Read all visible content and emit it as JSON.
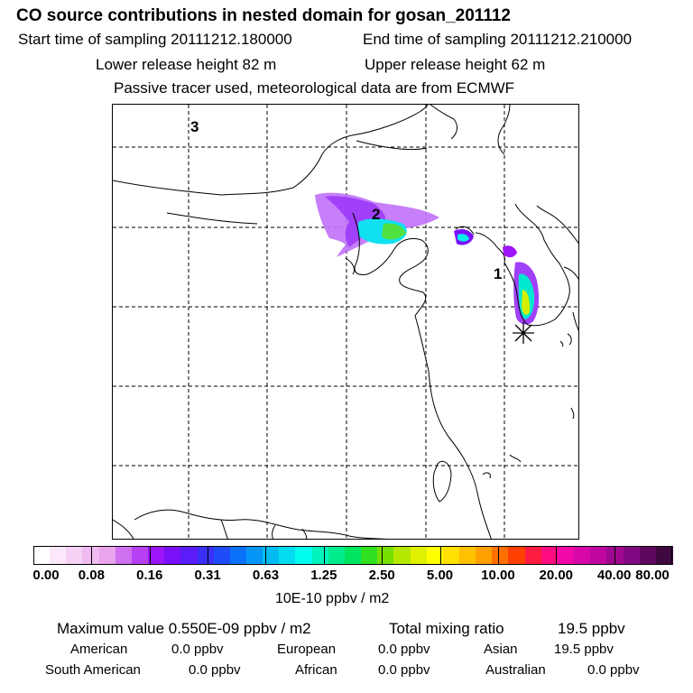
{
  "header": {
    "title": "CO  source contributions in nested domain for gosan_201112",
    "start_time": "Start time of sampling 20111212.180000",
    "end_time": "End time of sampling 20111212.210000",
    "lower_release": "Lower release height   82 m",
    "upper_release": "Upper release height   62 m",
    "tracer_note": "Passive tracer used, meteorological data are from ECMWF"
  },
  "map": {
    "labels": [
      "1",
      "2",
      "3"
    ],
    "receptor_marker": "receptor-star"
  },
  "colorbar": {
    "colors": [
      "#ffffff",
      "#fbe9fb",
      "#f5d2f5",
      "#efbbf0",
      "#e9a4ec",
      "#cf70f0",
      "#b640f4",
      "#9c14f8",
      "#7a10f8",
      "#5a1cf8",
      "#3a30f8",
      "#1e4cf8",
      "#0a72f8",
      "#0696f8",
      "#04bcf4",
      "#02dcf0",
      "#00fcec",
      "#00f4bc",
      "#00ec8c",
      "#00e460",
      "#30e020",
      "#78e000",
      "#b4e800",
      "#e0f000",
      "#ffff00",
      "#ffe000",
      "#ffc000",
      "#ffa000",
      "#ff7000",
      "#ff4000",
      "#ff1c40",
      "#ff0c80",
      "#f008a8",
      "#d808a8",
      "#c008a0",
      "#a00890",
      "#800880",
      "#600860",
      "#400840"
    ],
    "tick_labels": [
      "0.00",
      "0.08",
      "0.16",
      "0.31",
      "0.63",
      "1.25",
      "2.50",
      "5.00",
      "10.00",
      "20.00",
      "40.00",
      "80.00"
    ],
    "units": "10E-10 ppbv / m2"
  },
  "stats": {
    "max_value": "Maximum value  0.550E-09 ppbv / m2",
    "total_label": "Total mixing ratio",
    "total_value": "19.5 ppbv",
    "american_label": "American",
    "american_value": "0.0 ppbv",
    "european_label": "European",
    "european_value": "0.0 ppbv",
    "asian_label": "Asian",
    "asian_value": "19.5 ppbv",
    "south_american_label": "South American",
    "south_american_value": "0.0 ppbv",
    "african_label": "African",
    "african_value": "0.0 ppbv",
    "australian_label": "Australian",
    "australian_value": "0.0 ppbv"
  }
}
